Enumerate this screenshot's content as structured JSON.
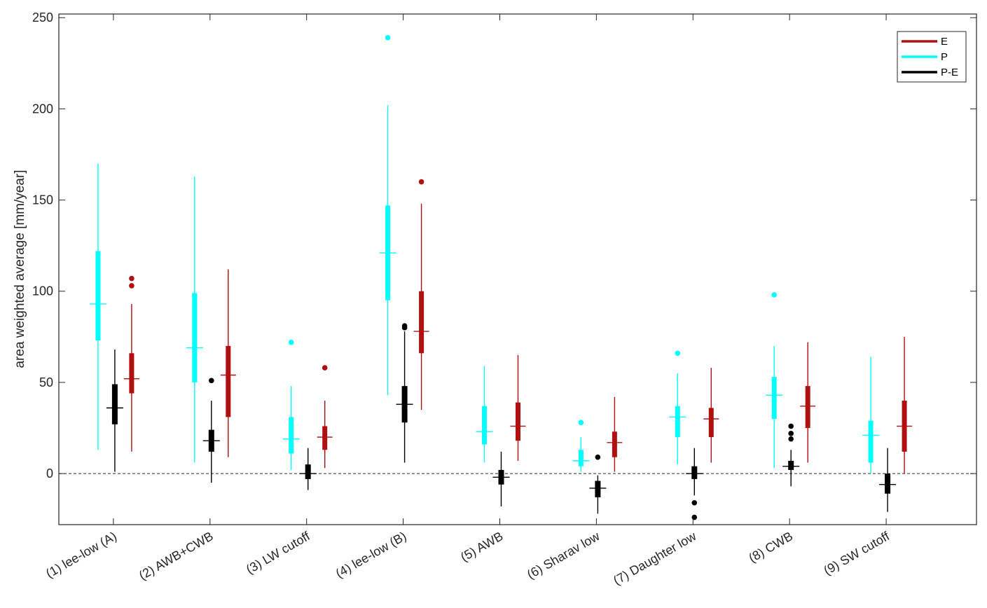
{
  "chart_data": {
    "type": "box",
    "title": "",
    "xlabel": "",
    "ylabel": "area weighted average [mm/year]",
    "ylim": [
      -28,
      252
    ],
    "yticks": [
      0,
      50,
      100,
      150,
      200,
      250
    ],
    "categories": [
      "(1) lee-low (A)",
      "(2) AWB+CWB",
      "(3) LW cutoff",
      "(4) lee-low (B)",
      "(5) AWB",
      "(6) Sharav low",
      "(7) Daughter low",
      "(8) CWB",
      "(9) SW cutoff"
    ],
    "reference_line": 0,
    "legend_position": "top-right",
    "series": [
      {
        "name": "P",
        "color": "#00ffff",
        "boxes": [
          {
            "whisker_low": 13,
            "q1": 73,
            "median": 93,
            "q3": 122,
            "whisker_high": 170,
            "outliers": []
          },
          {
            "whisker_low": 6,
            "q1": 50,
            "median": 69,
            "q3": 99,
            "whisker_high": 163,
            "outliers": []
          },
          {
            "whisker_low": 2,
            "q1": 11,
            "median": 19,
            "q3": 31,
            "whisker_high": 48,
            "outliers": [
              72
            ]
          },
          {
            "whisker_low": 43,
            "q1": 95,
            "median": 121,
            "q3": 147,
            "whisker_high": 202,
            "outliers": [
              239
            ]
          },
          {
            "whisker_low": 6,
            "q1": 16,
            "median": 23,
            "q3": 37,
            "whisker_high": 59,
            "outliers": []
          },
          {
            "whisker_low": 1,
            "q1": 4,
            "median": 7,
            "q3": 13,
            "whisker_high": 20,
            "outliers": [
              28
            ]
          },
          {
            "whisker_low": 5,
            "q1": 20,
            "median": 31,
            "q3": 37,
            "whisker_high": 55,
            "outliers": [
              66
            ]
          },
          {
            "whisker_low": 3,
            "q1": 30,
            "median": 43,
            "q3": 53,
            "whisker_high": 70,
            "outliers": [
              98
            ]
          },
          {
            "whisker_low": 0,
            "q1": 6,
            "median": 21,
            "q3": 29,
            "whisker_high": 64,
            "outliers": []
          }
        ]
      },
      {
        "name": "P-E",
        "color": "#000000",
        "boxes": [
          {
            "whisker_low": 1,
            "q1": 27,
            "median": 36,
            "q3": 49,
            "whisker_high": 68,
            "outliers": []
          },
          {
            "whisker_low": -5,
            "q1": 12,
            "median": 18,
            "q3": 24,
            "whisker_high": 40,
            "outliers": [
              51
            ]
          },
          {
            "whisker_low": -9,
            "q1": -3,
            "median": 0,
            "q3": 5,
            "whisker_high": 14,
            "outliers": []
          },
          {
            "whisker_low": 6,
            "q1": 28,
            "median": 38,
            "q3": 48,
            "whisker_high": 78,
            "outliers": [
              80,
              81
            ]
          },
          {
            "whisker_low": -18,
            "q1": -6,
            "median": -2,
            "q3": 2,
            "whisker_high": 12,
            "outliers": []
          },
          {
            "whisker_low": -22,
            "q1": -13,
            "median": -8,
            "q3": -4,
            "whisker_high": -1,
            "outliers": [
              9
            ]
          },
          {
            "whisker_low": -12,
            "q1": -3,
            "median": 0,
            "q3": 4,
            "whisker_high": 14,
            "outliers": [
              -16,
              -24
            ]
          },
          {
            "whisker_low": -7,
            "q1": 2,
            "median": 4,
            "q3": 7,
            "whisker_high": 13,
            "outliers": [
              19,
              22,
              26
            ]
          },
          {
            "whisker_low": -21,
            "q1": -11,
            "median": -6,
            "q3": 0,
            "whisker_high": 14,
            "outliers": []
          }
        ]
      },
      {
        "name": "E",
        "color": "#b01010",
        "boxes": [
          {
            "whisker_low": 12,
            "q1": 44,
            "median": 52,
            "q3": 66,
            "whisker_high": 93,
            "outliers": [
              103,
              107
            ]
          },
          {
            "whisker_low": 9,
            "q1": 31,
            "median": 54,
            "q3": 70,
            "whisker_high": 112,
            "outliers": []
          },
          {
            "whisker_low": 3,
            "q1": 13,
            "median": 20,
            "q3": 26,
            "whisker_high": 40,
            "outliers": [
              58
            ]
          },
          {
            "whisker_low": 35,
            "q1": 66,
            "median": 78,
            "q3": 100,
            "whisker_high": 148,
            "outliers": [
              160
            ]
          },
          {
            "whisker_low": 7,
            "q1": 18,
            "median": 26,
            "q3": 39,
            "whisker_high": 65,
            "outliers": []
          },
          {
            "whisker_low": 1,
            "q1": 9,
            "median": 17,
            "q3": 23,
            "whisker_high": 42,
            "outliers": []
          },
          {
            "whisker_low": 6,
            "q1": 20,
            "median": 30,
            "q3": 36,
            "whisker_high": 58,
            "outliers": []
          },
          {
            "whisker_low": 6,
            "q1": 25,
            "median": 37,
            "q3": 48,
            "whisker_high": 72,
            "outliers": []
          },
          {
            "whisker_low": 0,
            "q1": 12,
            "median": 26,
            "q3": 40,
            "whisker_high": 75,
            "outliers": []
          }
        ]
      }
    ],
    "legend": [
      {
        "label": "E",
        "color": "#b01010"
      },
      {
        "label": "P",
        "color": "#00ffff"
      },
      {
        "label": "P-E",
        "color": "#000000"
      }
    ]
  }
}
